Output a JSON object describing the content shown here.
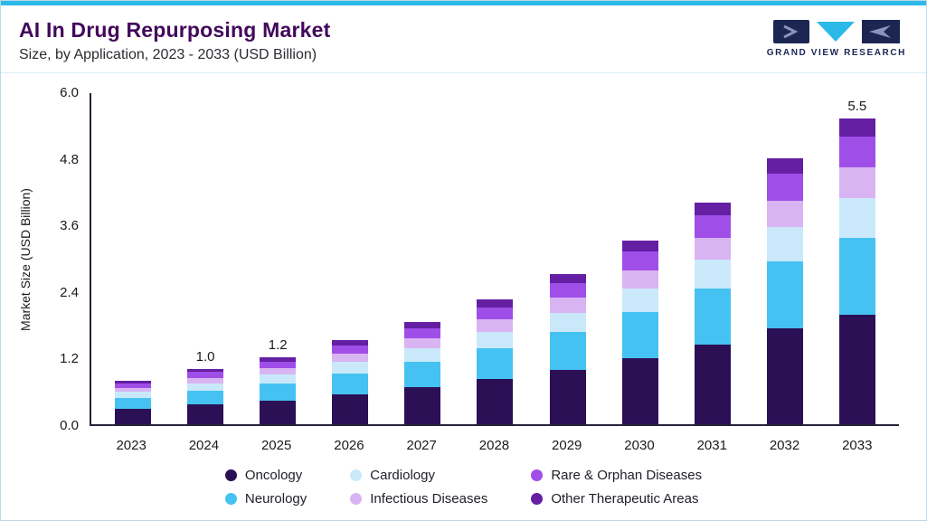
{
  "header": {
    "title": "AI In Drug Repurposing Market",
    "subtitle": "Size, by Application, 2023 - 2033 (USD Billion)",
    "brand": "GRAND VIEW RESEARCH"
  },
  "colors": {
    "top_accent": "#2cb9e8",
    "frame_border": "#bcd8e8",
    "title_text": "#42085c",
    "axis_line": "#23233a"
  },
  "chart_data": {
    "type": "bar",
    "stacked": true,
    "title": "AI In Drug Repurposing Market",
    "subtitle": "Size, by Application, 2023 - 2033 (USD Billion)",
    "xlabel": "",
    "ylabel": "Market Size (USD Billion)",
    "ylim": [
      0,
      6.0
    ],
    "yticks": [
      "0.0",
      "1.2",
      "2.4",
      "3.6",
      "4.8",
      "6.0"
    ],
    "grid": false,
    "legend_position": "bottom",
    "categories": [
      "2023",
      "2024",
      "2025",
      "2026",
      "2027",
      "2028",
      "2029",
      "2030",
      "2031",
      "2032",
      "2033"
    ],
    "series": [
      {
        "name": "Oncology",
        "color": "#2b1056",
        "values": [
          0.28,
          0.36,
          0.43,
          0.54,
          0.67,
          0.81,
          0.98,
          1.19,
          1.44,
          1.73,
          1.98
        ]
      },
      {
        "name": "Neurology",
        "color": "#45c2f1",
        "values": [
          0.2,
          0.25,
          0.3,
          0.38,
          0.46,
          0.56,
          0.68,
          0.83,
          1.0,
          1.2,
          1.38
        ]
      },
      {
        "name": "Cardiology",
        "color": "#c9e9fb",
        "values": [
          0.1,
          0.13,
          0.16,
          0.2,
          0.24,
          0.29,
          0.35,
          0.43,
          0.52,
          0.62,
          0.72
        ]
      },
      {
        "name": "Infectious Diseases",
        "color": "#d9b4f2",
        "values": [
          0.08,
          0.1,
          0.12,
          0.15,
          0.18,
          0.23,
          0.27,
          0.33,
          0.4,
          0.48,
          0.55
        ]
      },
      {
        "name": "Rare & Orphan Diseases",
        "color": "#a04ee8",
        "values": [
          0.08,
          0.1,
          0.12,
          0.15,
          0.18,
          0.22,
          0.27,
          0.33,
          0.4,
          0.48,
          0.55
        ]
      },
      {
        "name": "Other Therapeutic Areas",
        "color": "#641fa3",
        "values": [
          0.05,
          0.06,
          0.07,
          0.09,
          0.11,
          0.14,
          0.16,
          0.2,
          0.24,
          0.29,
          0.33
        ]
      }
    ],
    "bar_total_labels": [
      "",
      "1.0",
      "1.2",
      "",
      "",
      "",
      "",
      "",
      "",
      "",
      "5.5"
    ],
    "legend_rows": [
      [
        "Oncology",
        "Cardiology",
        "Rare & Orphan Diseases"
      ],
      [
        "Neurology",
        "Infectious Diseases",
        "Other Therapeutic Areas"
      ]
    ]
  }
}
